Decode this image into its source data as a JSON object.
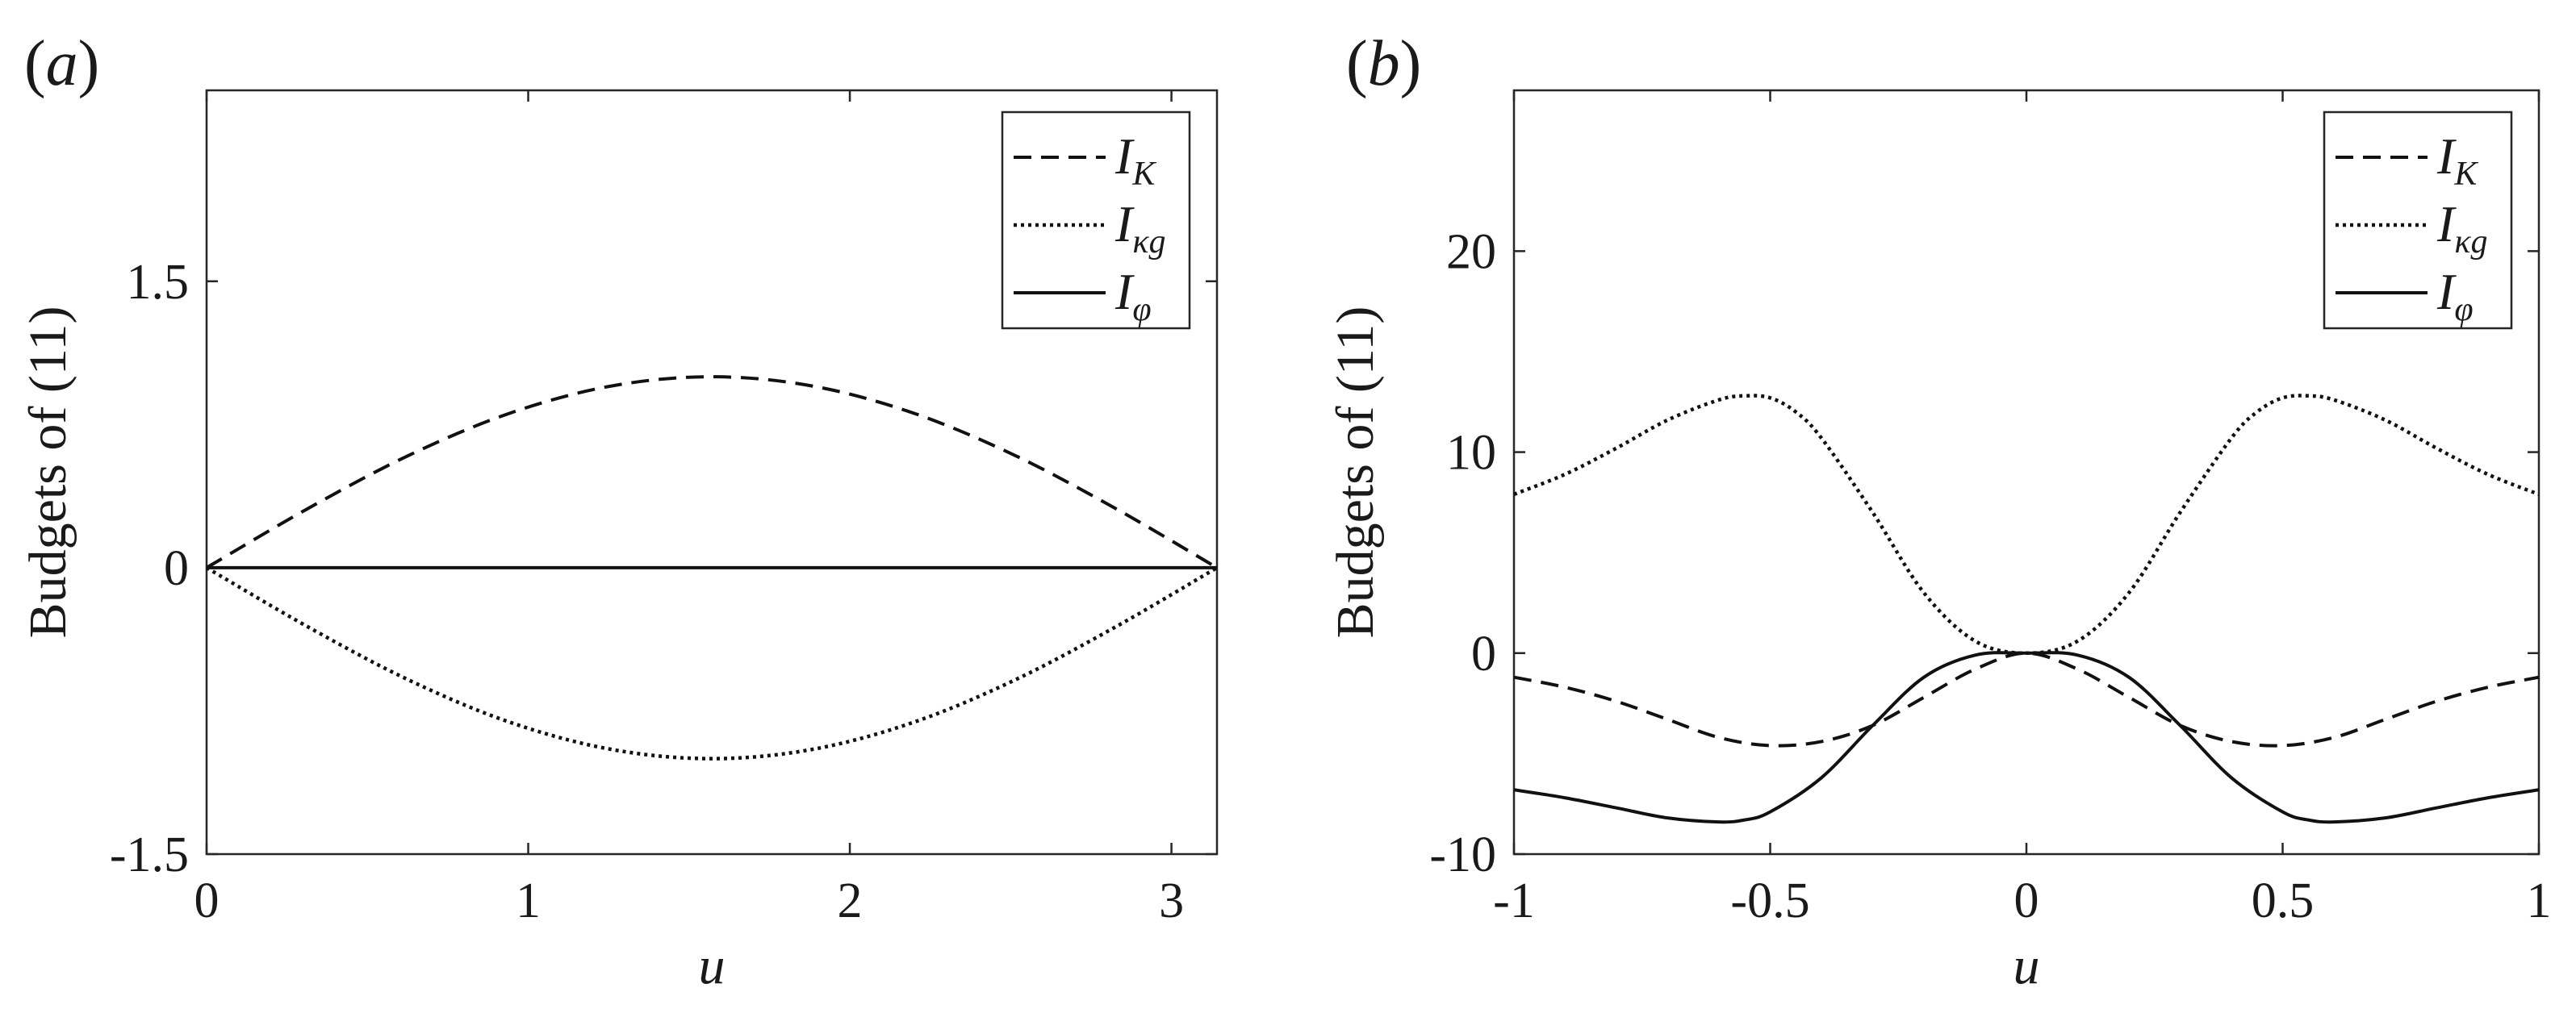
{
  "chart_data": [
    {
      "type": "line",
      "panel": "(a)",
      "xlabel": "u",
      "ylabel": "Budgets of (11)",
      "xlim": [
        0,
        3.14159
      ],
      "ylim": [
        -1.5,
        2.5
      ],
      "xticks": [
        0,
        1,
        2,
        3
      ],
      "xtick_labels": [
        "0",
        "1",
        "2",
        "3"
      ],
      "yticks": [
        -1.5,
        0,
        1.5
      ],
      "ytick_labels": [
        "-1.5",
        "0",
        "1.5"
      ],
      "legend_position": "top-right",
      "series": [
        {
          "name": "I_K",
          "label_main": "I",
          "label_sub": "K",
          "style": "dashed",
          "x": [
            0,
            0.3142,
            0.6283,
            0.9425,
            1.2566,
            1.5708,
            1.885,
            2.1991,
            2.5133,
            2.8274,
            3.1416
          ],
          "y": [
            0,
            0.309,
            0.588,
            0.809,
            0.951,
            1.0,
            0.951,
            0.809,
            0.588,
            0.309,
            0
          ]
        },
        {
          "name": "I_κg",
          "label_main": "I",
          "label_sub": "κg",
          "style": "dotted",
          "x": [
            0,
            0.3142,
            0.6283,
            0.9425,
            1.2566,
            1.5708,
            1.885,
            2.1991,
            2.5133,
            2.8274,
            3.1416
          ],
          "y": [
            0,
            -0.309,
            -0.588,
            -0.809,
            -0.951,
            -1.0,
            -0.951,
            -0.809,
            -0.588,
            -0.309,
            0
          ]
        },
        {
          "name": "I_φ",
          "label_main": "I",
          "label_sub": "φ",
          "style": "solid",
          "x": [
            0,
            3.1416
          ],
          "y": [
            0,
            0
          ]
        }
      ]
    },
    {
      "type": "line",
      "panel": "(b)",
      "xlabel": "u",
      "ylabel": "Budgets of (11)",
      "xlim": [
        -1,
        1
      ],
      "ylim": [
        -10,
        28
      ],
      "xticks": [
        -1,
        -0.5,
        0,
        0.5,
        1
      ],
      "xtick_labels": [
        "-1",
        "-0.5",
        "0",
        "0.5",
        "1"
      ],
      "yticks": [
        -10,
        0,
        10,
        20
      ],
      "ytick_labels": [
        "-10",
        "0",
        "10",
        "20"
      ],
      "legend_position": "top-right",
      "series": [
        {
          "name": "I_K",
          "label_main": "I",
          "label_sub": "K",
          "style": "dashed",
          "x": [
            -1,
            -0.9,
            -0.8,
            -0.7,
            -0.6,
            -0.5,
            -0.4,
            -0.3,
            -0.2,
            -0.1,
            0,
            0.1,
            0.2,
            0.3,
            0.4,
            0.5,
            0.6,
            0.7,
            0.8,
            0.9,
            1
          ],
          "y": [
            -1.2,
            -1.7,
            -2.4,
            -3.3,
            -4.2,
            -4.6,
            -4.4,
            -3.6,
            -2.2,
            -0.8,
            0,
            -0.8,
            -2.2,
            -3.6,
            -4.4,
            -4.6,
            -4.2,
            -3.3,
            -2.4,
            -1.7,
            -1.2
          ]
        },
        {
          "name": "I_κg",
          "label_main": "I",
          "label_sub": "κg",
          "style": "dotted",
          "x": [
            -1,
            -0.9,
            -0.8,
            -0.7,
            -0.6,
            -0.55,
            -0.5,
            -0.45,
            -0.4,
            -0.3,
            -0.2,
            -0.1,
            0,
            0.1,
            0.2,
            0.3,
            0.4,
            0.45,
            0.5,
            0.55,
            0.6,
            0.7,
            0.8,
            0.9,
            1
          ],
          "y": [
            7.9,
            8.9,
            10.2,
            11.6,
            12.6,
            12.8,
            12.7,
            12.0,
            10.7,
            7.0,
            3.0,
            0.6,
            0,
            0.6,
            3.0,
            7.0,
            10.7,
            12.0,
            12.7,
            12.8,
            12.6,
            11.6,
            10.2,
            8.9,
            7.9
          ]
        },
        {
          "name": "I_φ",
          "label_main": "I",
          "label_sub": "φ",
          "style": "solid",
          "x": [
            -1,
            -0.9,
            -0.8,
            -0.7,
            -0.6,
            -0.55,
            -0.5,
            -0.4,
            -0.3,
            -0.2,
            -0.1,
            0,
            0.1,
            0.2,
            0.3,
            0.4,
            0.5,
            0.55,
            0.6,
            0.7,
            0.8,
            0.9,
            1
          ],
          "y": [
            -6.8,
            -7.2,
            -7.7,
            -8.2,
            -8.4,
            -8.3,
            -7.9,
            -6.2,
            -3.6,
            -1.2,
            -0.1,
            0,
            -0.1,
            -1.2,
            -3.6,
            -6.2,
            -7.9,
            -8.3,
            -8.4,
            -8.2,
            -7.7,
            -7.2,
            -6.8
          ]
        }
      ]
    }
  ]
}
